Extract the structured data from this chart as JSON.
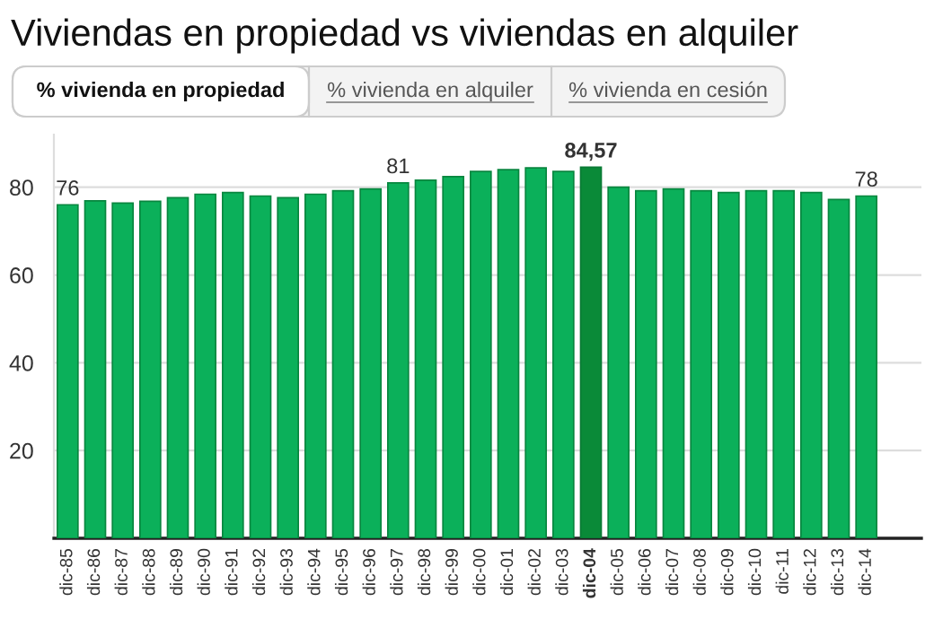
{
  "chart_data": {
    "type": "bar",
    "title": "Viviendas en propiedad vs viviendas en alquiler",
    "annotations": [
      "% vivienda en propiedad",
      "% vivienda en alquiler",
      "% vivienda en cesión"
    ],
    "categories": [
      "dic-85",
      "dic-86",
      "dic-87",
      "dic-88",
      "dic-89",
      "dic-90",
      "dic-91",
      "dic-92",
      "dic-93",
      "dic-94",
      "dic-95",
      "dic-96",
      "dic-97",
      "dic-98",
      "dic-99",
      "dic-00",
      "dic-01",
      "dic-02",
      "dic-03",
      "dic-04",
      "dic-05",
      "dic-06",
      "dic-07",
      "dic-08",
      "dic-09",
      "dic-10",
      "dic-11",
      "dic-12",
      "dic-13",
      "dic-14"
    ],
    "values": [
      76,
      76.9,
      76.4,
      76.8,
      77.6,
      78.4,
      78.8,
      78,
      77.6,
      78.4,
      79.2,
      79.6,
      81,
      81.6,
      82.4,
      83.6,
      84,
      84.4,
      83.6,
      84.57,
      80,
      79.2,
      79.6,
      79.2,
      78.8,
      79.2,
      79.2,
      78.8,
      77.2,
      78
    ],
    "value_labels": [
      "76",
      null,
      null,
      null,
      null,
      null,
      null,
      null,
      null,
      null,
      null,
      null,
      "81",
      null,
      null,
      null,
      null,
      null,
      null,
      "84,57",
      null,
      null,
      null,
      null,
      null,
      null,
      null,
      null,
      null,
      "78"
    ],
    "colors": [
      "#0bb05a",
      "#0bb05a",
      "#0bb05a",
      "#0bb05a",
      "#0bb05a",
      "#0bb05a",
      "#0bb05a",
      "#0bb05a",
      "#0bb05a",
      "#0bb05a",
      "#0bb05a",
      "#0bb05a",
      "#0bb05a",
      "#0bb05a",
      "#0bb05a",
      "#0bb05a",
      "#0bb05a",
      "#0bb05a",
      "#0bb05a",
      "#0a8a38",
      "#0bb05a",
      "#0bb05a",
      "#0bb05a",
      "#0bb05a",
      "#0bb05a",
      "#0bb05a",
      "#0bb05a",
      "#0bb05a",
      "#0bb05a",
      "#0bb05a"
    ],
    "ylim": [
      0,
      92
    ],
    "yticks": [
      20,
      40,
      60,
      80
    ],
    "grid": "y"
  }
}
